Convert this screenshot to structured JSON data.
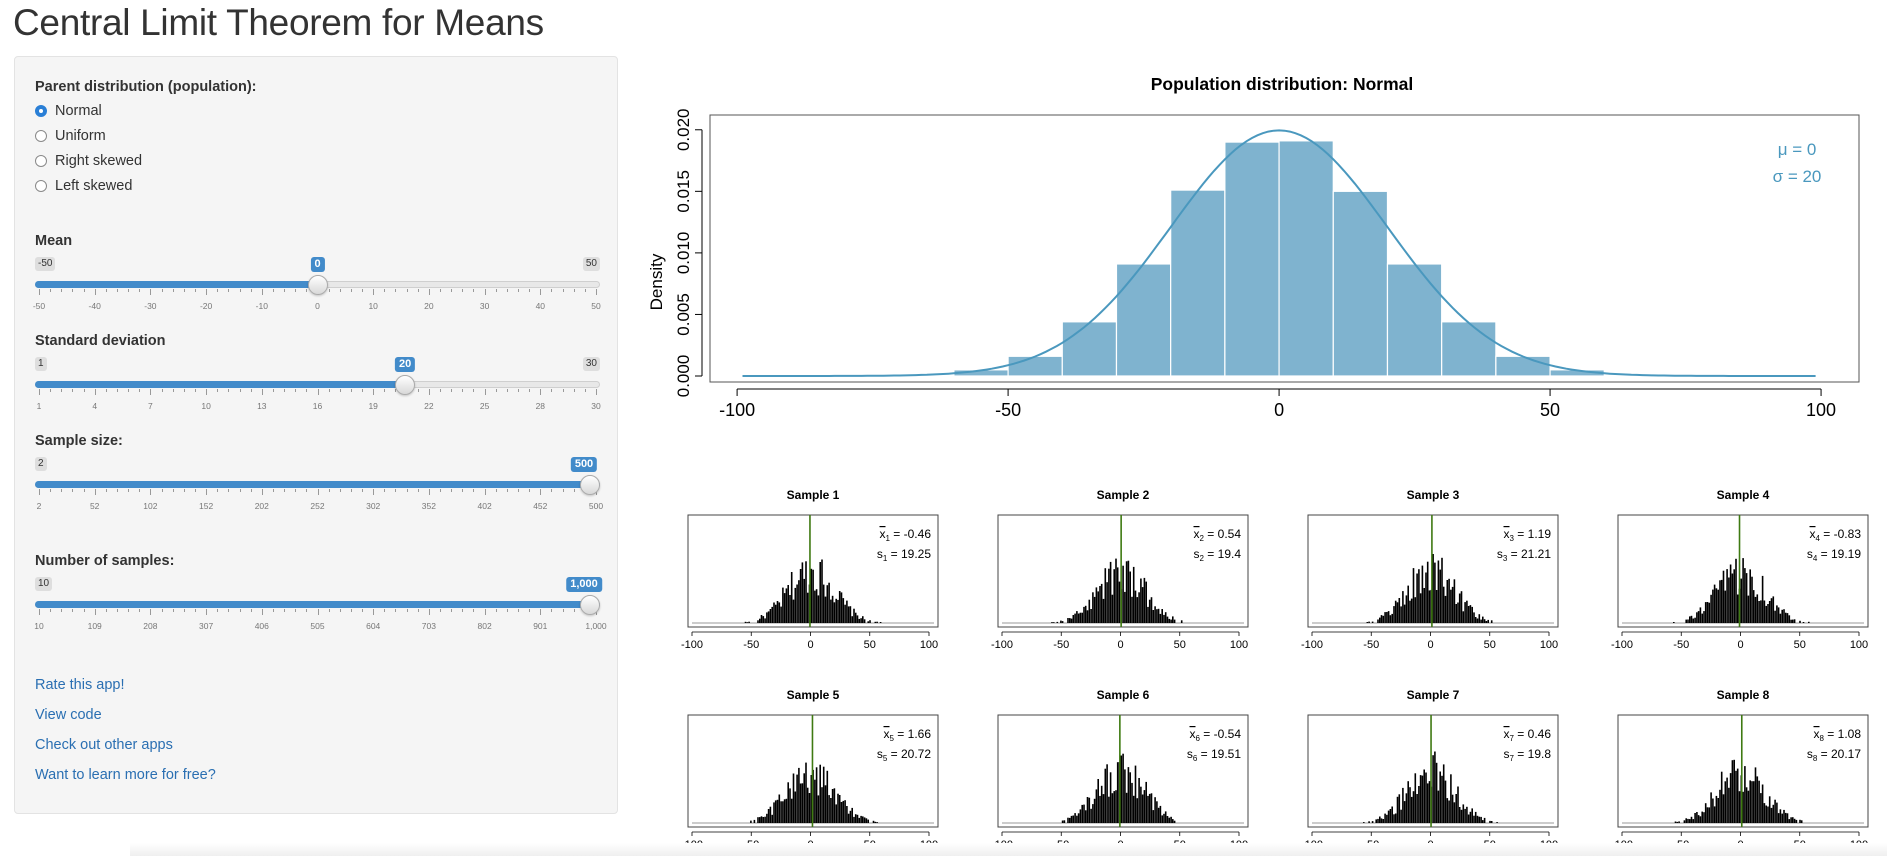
{
  "page": {
    "title": "Central Limit Theorem for Means"
  },
  "sidebar": {
    "parent_label": "Parent distribution (population):",
    "distributions": [
      {
        "label": "Normal",
        "checked": true
      },
      {
        "label": "Uniform",
        "checked": false
      },
      {
        "label": "Right skewed",
        "checked": false
      },
      {
        "label": "Left skewed",
        "checked": false
      }
    ],
    "sliders": [
      {
        "key": "mean",
        "label": "Mean",
        "min": -50,
        "max": 50,
        "value": 0,
        "min_text": "-50",
        "max_text": "50",
        "value_text": "0",
        "ticks": [
          "-50",
          "-40",
          "-30",
          "-20",
          "-10",
          "0",
          "10",
          "20",
          "30",
          "40",
          "50"
        ]
      },
      {
        "key": "sd",
        "label": "Standard deviation",
        "min": 1,
        "max": 30,
        "value": 20,
        "min_text": "1",
        "max_text": "30",
        "value_text": "20",
        "ticks": [
          "1",
          "4",
          "7",
          "10",
          "13",
          "16",
          "19",
          "22",
          "25",
          "28",
          "30"
        ]
      },
      {
        "key": "n",
        "label": "Sample size:",
        "min": 2,
        "max": 500,
        "value": 500,
        "min_text": "2",
        "max_text": "500",
        "value_text": "500",
        "ticks": [
          "2",
          "52",
          "102",
          "152",
          "202",
          "252",
          "302",
          "352",
          "402",
          "452",
          "500"
        ]
      },
      {
        "key": "k",
        "label": "Number of samples:",
        "min": 10,
        "max": 1000,
        "value": 1000,
        "min_text": "10",
        "max_text": "1,000",
        "value_text": "1,000",
        "ticks": [
          "10",
          "109",
          "208",
          "307",
          "406",
          "505",
          "604",
          "703",
          "802",
          "901",
          "1,000"
        ]
      }
    ],
    "links": [
      "Rate this app!",
      "View code",
      "Check out other apps",
      "Want to learn more for free?"
    ]
  },
  "colors": {
    "accent": "#428bca",
    "hist_fill": "#7fb3cf",
    "curve": "#4a98be",
    "sample_line": "#3f7a12"
  },
  "chart_data": [
    {
      "type": "bar",
      "title": "Population distribution: Normal",
      "ylabel": "Density",
      "xlabel": "",
      "bins": [
        [
          -60,
          -50
        ],
        [
          -50,
          -40
        ],
        [
          -40,
          -30
        ],
        [
          -30,
          -20
        ],
        [
          -20,
          -10
        ],
        [
          -10,
          0
        ],
        [
          0,
          10
        ],
        [
          10,
          20
        ],
        [
          20,
          30
        ],
        [
          30,
          40
        ],
        [
          40,
          50
        ],
        [
          50,
          60
        ]
      ],
      "values": [
        0.0005,
        0.0016,
        0.0044,
        0.0091,
        0.0151,
        0.019,
        0.0191,
        0.015,
        0.0091,
        0.0044,
        0.0016,
        0.0005
      ],
      "curve": {
        "type": "normal",
        "mean": 0,
        "sd": 20
      },
      "xlim": [
        -105,
        107
      ],
      "ylim": [
        0,
        0.0212
      ],
      "xticks": [
        "-100",
        "-50",
        "0",
        "50",
        "100"
      ],
      "yticks": [
        "0.000",
        "0.005",
        "0.010",
        "0.015",
        "0.020"
      ],
      "annotation": [
        "μ = 0",
        "σ = 20"
      ]
    },
    {
      "type": "bar",
      "name": "sample-histograms",
      "xticks": [
        "-100",
        "-50",
        "0",
        "50",
        "100"
      ],
      "samples": [
        {
          "title": "Sample 1",
          "mean": "-0.46",
          "sd": "19.25",
          "index": "1"
        },
        {
          "title": "Sample 2",
          "mean": "0.54",
          "sd": "19.4",
          "index": "2"
        },
        {
          "title": "Sample 3",
          "mean": "1.19",
          "sd": "21.21",
          "index": "3"
        },
        {
          "title": "Sample 4",
          "mean": "-0.83",
          "sd": "19.19",
          "index": "4"
        },
        {
          "title": "Sample 5",
          "mean": "1.66",
          "sd": "20.72",
          "index": "5"
        },
        {
          "title": "Sample 6",
          "mean": "-0.54",
          "sd": "19.51",
          "index": "6"
        },
        {
          "title": "Sample 7",
          "mean": "0.46",
          "sd": "19.8",
          "index": "7"
        },
        {
          "title": "Sample 8",
          "mean": "1.08",
          "sd": "20.17",
          "index": "8"
        }
      ]
    }
  ]
}
